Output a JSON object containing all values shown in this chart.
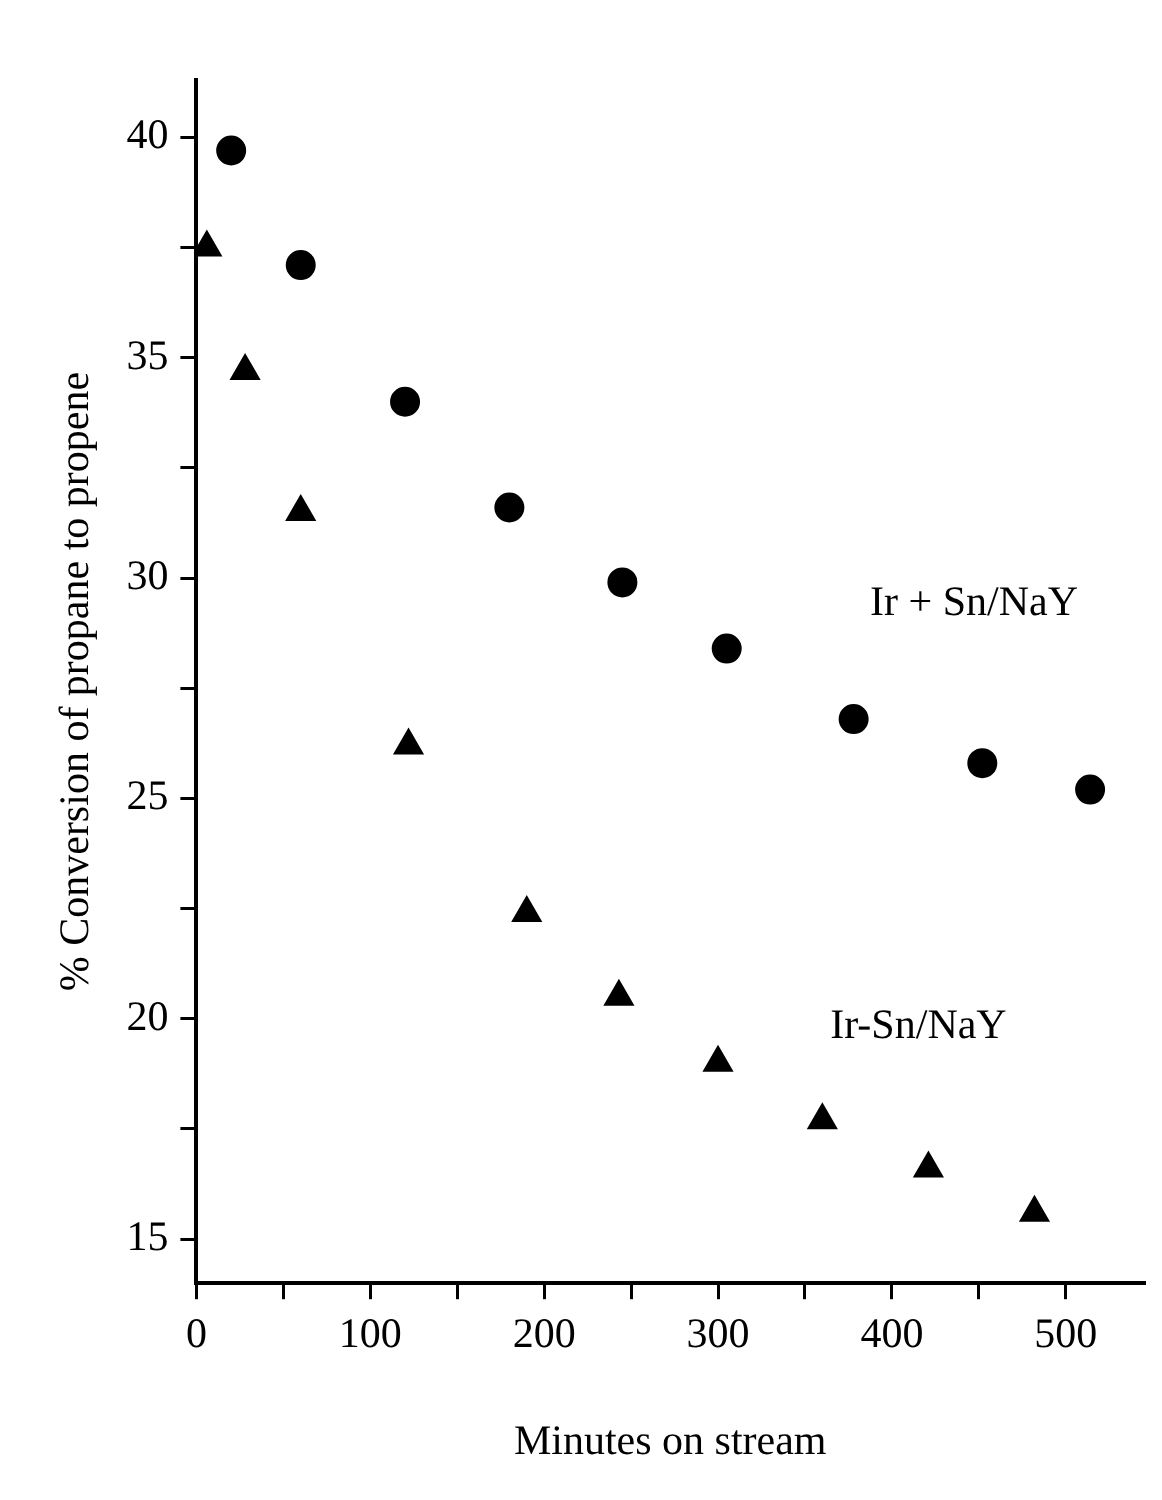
{
  "chart_data": {
    "type": "scatter",
    "xlabel": "Minutes on stream",
    "ylabel": "% Conversion of propane to propene",
    "xlim": [
      0,
      545
    ],
    "ylim": [
      14,
      41.3
    ],
    "xticks": [
      0,
      {
        "value": 50,
        "label": null
      },
      100,
      {
        "value": 150,
        "label": null
      },
      200,
      {
        "value": 250,
        "label": null
      },
      300,
      {
        "value": 350,
        "label": null
      },
      400,
      {
        "value": 450,
        "label": null
      },
      500
    ],
    "yticks": [
      15,
      {
        "value": 17.5,
        "label": null
      },
      20,
      {
        "value": 22.5,
        "label": null
      },
      25,
      {
        "value": 27.5,
        "label": null
      },
      30,
      {
        "value": 32.5,
        "label": null
      },
      35,
      {
        "value": 37.5,
        "label": null
      },
      40
    ],
    "grid": false,
    "legend": false,
    "series": [
      {
        "name": "Ir + Sn/NaY",
        "color": "#000000",
        "marker": "circle",
        "x": [
          20,
          60,
          120,
          180,
          245,
          305,
          378,
          452,
          514
        ],
        "values": [
          39.7,
          37.1,
          34.0,
          31.6,
          29.9,
          28.4,
          26.8,
          25.8,
          25.2
        ]
      },
      {
        "name": "Ir-Sn/NaY",
        "color": "#000000",
        "marker": "triangle",
        "x": [
          6,
          28,
          60,
          122,
          190,
          243,
          300,
          360,
          421,
          482
        ],
        "values": [
          37.5,
          34.7,
          31.5,
          26.2,
          22.4,
          20.5,
          19.0,
          17.7,
          16.6,
          15.6
        ]
      }
    ]
  }
}
